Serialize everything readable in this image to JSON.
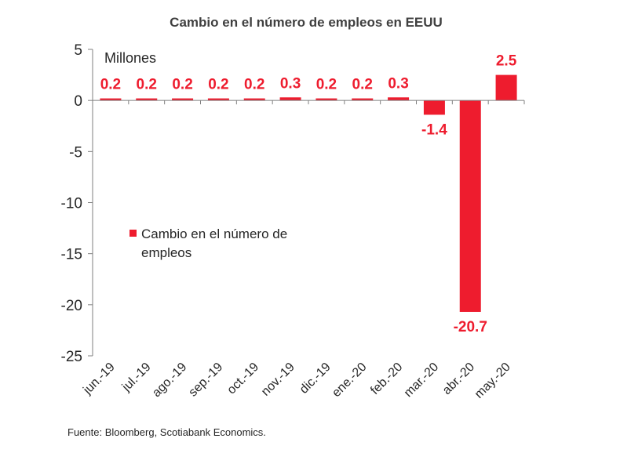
{
  "chart_data": {
    "type": "bar",
    "title": "Cambio en el número de empleos en EEUU",
    "unit_label": "Millones",
    "categories": [
      "jun.-19",
      "jul.-19",
      "ago.-19",
      "sep.-19",
      "oct.-19",
      "nov.-19",
      "dic.-19",
      "ene.-20",
      "feb.-20",
      "mar.-20",
      "abr.-20",
      "may.-20"
    ],
    "series": [
      {
        "name": "Cambio en el número de empleos",
        "legend_lines": [
          "Cambio en el número de",
          "empleos"
        ],
        "color": "#ee1c2e",
        "values": [
          0.2,
          0.2,
          0.2,
          0.2,
          0.2,
          0.3,
          0.2,
          0.2,
          0.3,
          -1.4,
          -20.7,
          2.5
        ],
        "labels": [
          "0.2",
          "0.2",
          "0.2",
          "0.2",
          "0.2",
          "0.3",
          "0.2",
          "0.2",
          "0.3",
          "-1.4",
          "-20.7",
          "2.5"
        ]
      }
    ],
    "ylim": [
      -25,
      5
    ],
    "yticks": [
      5,
      0,
      -5,
      -10,
      -15,
      -20,
      -25
    ],
    "xlabel": "",
    "ylabel": "",
    "grid": false,
    "legend_position": "center-left"
  },
  "source": "Fuente: Bloomberg, Scotiabank Economics.",
  "colors": {
    "bar": "#ee1c2e",
    "label": "#ee1c2e",
    "axis": "#7f7f7f",
    "text": "#262626"
  }
}
